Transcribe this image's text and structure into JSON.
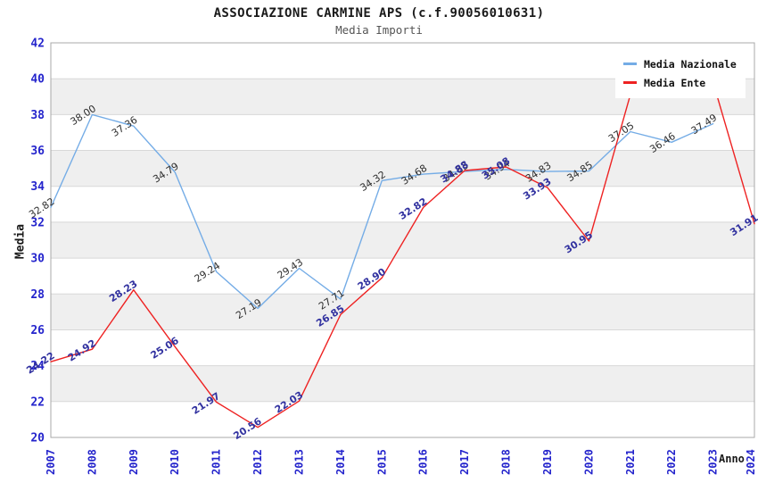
{
  "title": "ASSOCIAZIONE CARMINE APS (c.f.90056010631)",
  "subtitle": "Media Importi",
  "axes": {
    "y_label": "Media",
    "x_label": "Anno",
    "y_ticks": [
      42,
      40,
      38,
      36,
      34,
      32,
      30,
      28,
      26,
      24,
      22,
      20
    ],
    "tick_color": "#2424cc"
  },
  "legend": {
    "position": "top-right",
    "items": [
      {
        "label": "Media Nazionale",
        "color": "#74ace6"
      },
      {
        "label": "Media Ente",
        "color": "#ee2222"
      }
    ]
  },
  "chart_data": {
    "type": "line",
    "x": [
      "2007",
      "2008",
      "2009",
      "2010",
      "2011",
      "2012",
      "2013",
      "2014",
      "2015",
      "2016",
      "2017",
      "2018",
      "2019",
      "2020",
      "2021",
      "2022",
      "2023",
      "2024"
    ],
    "series": [
      {
        "name": "Media Nazionale",
        "color": "#74ace6",
        "label_color": "#2e2e2e",
        "label_bold": false,
        "values": [
          32.82,
          38.0,
          37.36,
          34.79,
          29.24,
          27.19,
          29.43,
          27.71,
          34.32,
          34.68,
          34.83,
          34.94,
          34.83,
          34.85,
          37.05,
          36.46,
          37.49,
          null
        ],
        "labels": [
          "32.82",
          "38.00",
          "37.36",
          "34.79",
          "29.24",
          "27.19",
          "29.43",
          "27.71",
          "34.32",
          "34.68",
          "34.83",
          "34.94",
          "34.83",
          "34.85",
          "37.05",
          "36.46",
          "37.49",
          null
        ]
      },
      {
        "name": "Media Ente",
        "color": "#ee2222",
        "label_color": "#3232a0",
        "label_bold": true,
        "values": [
          24.22,
          24.92,
          28.23,
          25.06,
          21.97,
          20.56,
          22.03,
          26.85,
          28.9,
          32.82,
          34.88,
          35.08,
          33.93,
          30.95,
          39.1,
          39.25,
          39.81,
          31.91
        ],
        "labels": [
          "24.22",
          "24.92",
          "28.23",
          "25.06",
          "21.97",
          "20.56",
          "22.03",
          "26.85",
          "28.90",
          "32.82",
          "34.88",
          "35.08",
          "33.93",
          "30.95",
          null,
          null,
          "39.81",
          "31.91"
        ]
      }
    ],
    "ylim": [
      20,
      42
    ],
    "grid": true,
    "band_fill": "#efefef",
    "legend_position": "top-right"
  }
}
